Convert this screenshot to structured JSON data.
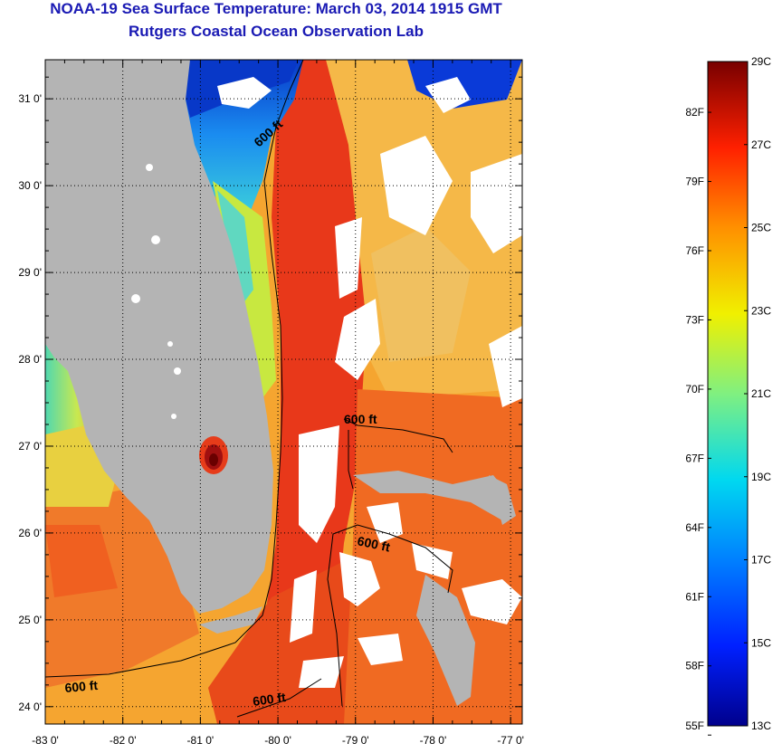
{
  "title": "NOAA-19 Sea Surface Temperature:  March 03, 2014 1915 GMT",
  "subtitle": "Rutgers Coastal Ocean Observation Lab",
  "map": {
    "lat_labels": [
      "31 0'",
      "30 0'",
      "29 0'",
      "28 0'",
      "27 0'",
      "26 0'",
      "25 0'",
      "24 0'"
    ],
    "lon_labels": [
      "-83 0'",
      "-82 0'",
      "-81 0'",
      "-80 0'",
      "-79 0'",
      "-78 0'",
      "-77 0'"
    ],
    "lat_range": [
      23.8,
      31.45
    ],
    "lon_range": [
      -83,
      -76.85
    ],
    "contour_label": "600 ft",
    "colors": {
      "land": "#b4b4b4",
      "cloud": "#ffffff",
      "gulf_stream": "#e8341a",
      "shelf_warm": "#f07020",
      "atlantic_north": "#f5a83a",
      "gulf": "#f5b030",
      "cold_shelf": "#0a48d8"
    }
  },
  "colorbar": {
    "celsius_labels": [
      "29C",
      "27C",
      "25C",
      "23C",
      "21C",
      "19C",
      "17C",
      "15C",
      "13C"
    ],
    "fahrenheit_labels": [
      "82F",
      "79F",
      "76F",
      "73F",
      "70F",
      "67F",
      "64F",
      "61F",
      "58F",
      "55F"
    ],
    "min_c": 13,
    "max_c": 29
  }
}
